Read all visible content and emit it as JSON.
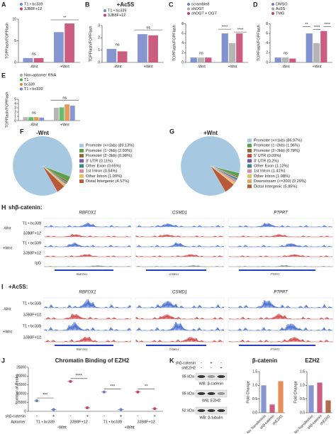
{
  "chart_data": [
    {
      "type": "bar",
      "panel": "A",
      "ylabel": "TOPFlash/FOPFlash",
      "categories": [
        "-Wnt",
        "+Wnt"
      ],
      "series": [
        {
          "name": "T1 • bc339",
          "color": "#7384c8",
          "values": [
            1,
            7
          ]
        },
        {
          "name": "3JB8F+12",
          "color": "#c2416b",
          "values": [
            1,
            9
          ]
        }
      ],
      "ylim": [
        0,
        10
      ],
      "yticks": [
        0,
        5,
        10
      ],
      "annotations": [
        "ns",
        "**"
      ]
    },
    {
      "type": "bar",
      "panel": "B",
      "title": "+Ac5S",
      "ylabel": "TOPFlash/FOPFlash",
      "categories": [
        "-Wnt",
        "+Wnt"
      ],
      "series": [
        {
          "name": "T1 • bc339",
          "color": "#7384c8",
          "values": [
            1.1,
            2.3
          ]
        },
        {
          "name": "3JB8F+12",
          "color": "#c2416b",
          "values": [
            0.9,
            2.2
          ]
        }
      ],
      "ylim": [
        0,
        3
      ],
      "yticks": [
        0,
        1,
        2,
        3
      ],
      "annotations": [
        "ns",
        "ns"
      ]
    },
    {
      "type": "bar",
      "panel": "C",
      "ylabel": "TOPFlash/FOPFlash",
      "categories": [
        "-Wnt",
        "+Wnt"
      ],
      "series": [
        {
          "name": "scrambled",
          "color": "#6a7fc7",
          "values": [
            1,
            6
          ]
        },
        {
          "name": "shOGT",
          "color": "#a8a8a8",
          "values": [
            1,
            4
          ]
        },
        {
          "name": "shOGT + OGT",
          "color": "#c2416b",
          "values": [
            1,
            6
          ]
        }
      ],
      "ylim": [
        0,
        8
      ],
      "yticks": [
        0,
        2,
        4,
        6,
        8
      ],
      "annotations": [
        "ns",
        "****",
        "****"
      ]
    },
    {
      "type": "bar",
      "panel": "D",
      "ylabel": "TOPFlash/FOPFlash",
      "categories": [
        "-Wnt",
        "+Wnt"
      ],
      "series": [
        {
          "name": "DMSO",
          "color": "#6a7fc7",
          "values": [
            1,
            6
          ]
        },
        {
          "name": "Ac5S",
          "color": "#a8a8a8",
          "values": [
            1,
            4
          ]
        },
        {
          "name": "TMG",
          "color": "#c2416b",
          "values": [
            0.8,
            6.5
          ]
        }
      ],
      "ylim": [
        0,
        8
      ],
      "yticks": [
        0,
        2,
        4,
        6,
        8
      ],
      "annotations": [
        "ns",
        "**",
        "****",
        "****"
      ]
    },
    {
      "type": "bar",
      "panel": "E",
      "ylabel": "TOPFlash/FOPFlash",
      "categories": [
        "-Wnt",
        "+Wnt"
      ],
      "series": [
        {
          "name": "Non-aptamer RNA",
          "color": "#a8a8a8",
          "values": [
            0.8,
            3
          ]
        },
        {
          "name": "T1",
          "color": "#4caf50",
          "values": [
            0.8,
            3.1
          ]
        },
        {
          "name": "bc339",
          "color": "#e08a3c",
          "values": [
            0.8,
            3.8
          ]
        },
        {
          "name": "T1 • bc339",
          "color": "#7384c8",
          "values": [
            0.7,
            3.5
          ]
        }
      ],
      "ylim": [
        0,
        5
      ],
      "yticks": [
        0,
        1,
        2,
        3,
        4,
        5
      ],
      "annotations": [
        "ns",
        "ns"
      ]
    },
    {
      "type": "pie",
      "panel": "F",
      "title": "-Wnt",
      "labels": [
        "Promoter (<=1kb) (89.13%)",
        "Promoter (1~2kb) (2.93%)",
        "Promoter (2~3kb) (0.98%)",
        "3' UTR (0.11%)",
        "Other Exon (0.65%)",
        "1st Intron (0.54%)",
        "Other Intron (1.09%)",
        "Distal Intergenic (4.57%)"
      ],
      "values": [
        89.13,
        2.93,
        0.98,
        0.11,
        0.65,
        0.54,
        1.09,
        4.57
      ],
      "colors": [
        "#a6c8e0",
        "#5aa04a",
        "#8b6b3a",
        "#7a5aa8",
        "#3a8a8a",
        "#d88aa8",
        "#e0c060",
        "#b85a3a"
      ]
    },
    {
      "type": "pie",
      "panel": "G",
      "title": "+Wnt",
      "labels": [
        "Promoter (<=1kb) (86.97%)",
        "Promoter (1~2kb) (1.96%)",
        "Promoter (2~3kb) (0.78%)",
        "5' UTR (0.09%)",
        "3' UTR (0.2%)",
        "Other Exon (1.12%)",
        "1st Intron (1.41%)",
        "Other Intron (1.08%)",
        "Downstream (<=300) (0.29%)",
        "Distal Intergenic (5.85%)"
      ],
      "values": [
        86.97,
        1.96,
        0.78,
        0.09,
        0.2,
        1.12,
        1.41,
        1.08,
        0.29,
        5.85
      ],
      "colors": [
        "#a6c8e0",
        "#5aa04a",
        "#8b6b3a",
        "#c84a3a",
        "#7a5aa8",
        "#3a8a8a",
        "#d88aa8",
        "#e0c060",
        "#e8a060",
        "#b85a3a"
      ]
    },
    {
      "type": "dot",
      "panel": "J",
      "title": "Chromatin Binding of EZH2",
      "ylabel": "Number of Peaks",
      "categories": [
        "T1 • bc339",
        "3JB8F+12",
        "T1 • bc339",
        "3JB8F+12"
      ],
      "colors": [
        "#6a7fc7",
        "#c2416b",
        "#6a7fc7",
        "#c2416b"
      ],
      "groups": [
        "-Wnt",
        "+Wnt"
      ],
      "row_labels": [
        "shβ-catenin",
        "Aptamer"
      ],
      "series": [
        {
          "name": "-",
          "values": [
            6000,
            17000,
            11000,
            11000
          ]
        },
        {
          "name": "+",
          "values": [
            1000,
            2000,
            1000,
            1500
          ]
        }
      ],
      "ylim": [
        0,
        25000
      ],
      "yticks": [
        0,
        5000,
        10000,
        15000,
        20000,
        25000
      ],
      "annotations": [
        "***",
        "****",
        "***",
        "**"
      ]
    },
    {
      "type": "bar",
      "title": "β-catenin",
      "ylabel": "Fold Change",
      "categories": [
        "No Transfection",
        "shβ-catenin",
        "shEZH2"
      ],
      "values": [
        1.0,
        0.3,
        1.15
      ],
      "colors": [
        "#7384c8",
        "#c2416b",
        "#e07b3c"
      ],
      "ylim": [
        0,
        1.5
      ],
      "yticks": [
        {
          "value": 0,
          "label": "0.0"
        },
        0.5,
        {
          "value": 1,
          "label": "1.0"
        },
        1.5
      ]
    },
    {
      "type": "bar",
      "title": "EZH2",
      "ylabel": "Fold Change",
      "categories": [
        "No Transfection",
        "shβ-catenin",
        "shEZH2"
      ],
      "values": [
        1.0,
        1.1,
        0.45
      ],
      "colors": [
        "#7384c8",
        "#c2416b",
        "#a0522d"
      ],
      "ylim": [
        0,
        1.5
      ],
      "yticks": [
        {
          "value": 0,
          "label": "0.0"
        },
        0.5,
        {
          "value": 1,
          "label": "1.0"
        },
        1.5
      ]
    }
  ],
  "tracks": [
    {
      "panel": "H",
      "title": "shβ-catenin:",
      "genes": [
        "RBFOX1",
        "CSMD1",
        "PTPRT"
      ],
      "rows": [
        "T1 • bc339",
        "3JB8F+12",
        "T1 • bc339",
        "3JB8F+12",
        "IgG"
      ],
      "conditions": [
        "-Wnt",
        "+Wnt"
      ]
    },
    {
      "panel": "I",
      "title": "+Ac5S:",
      "genes": [
        "RBFOX1",
        "CSMD1",
        "PTPRT"
      ],
      "rows": [
        "T1 • bc339",
        "3JB8F+12",
        "T1 • bc339",
        "3JB8F+12"
      ],
      "conditions": [
        "-Wnt",
        "+Wnt"
      ]
    }
  ],
  "blot": {
    "panel": "K",
    "rows": [
      "shβ-catenin",
      "shEZH2"
    ],
    "lanes": [
      [
        "-",
        "+",
        "-"
      ],
      [
        "-",
        "-",
        "+"
      ]
    ],
    "bands": [
      {
        "size": "95 kDa",
        "label": "WB: β-catenin"
      },
      {
        "size": "95 kDa",
        "label": "WB: EZH2"
      },
      {
        "size": "52 kDa",
        "label": "WB: β-tubulin"
      }
    ]
  }
}
